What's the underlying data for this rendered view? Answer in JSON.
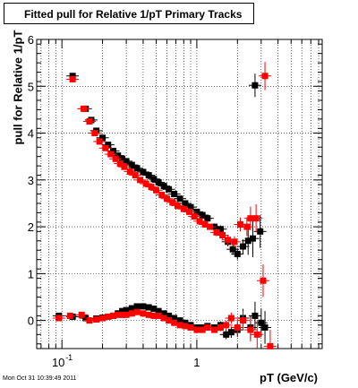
{
  "chart_data": {
    "type": "scatter",
    "title": "Fitted pull for Relative 1/pT  Primary Tracks",
    "xlabel": "pT (GeV/c)",
    "ylabel": "pull for Relative 1/pT",
    "x_scale": "log",
    "xlim": [
      0.065,
      8.5
    ],
    "ylim": [
      -0.6,
      6
    ],
    "grid": true,
    "x_ticks": [
      {
        "value": 0.1,
        "label": "10",
        "exponent": "-1"
      },
      {
        "value": 1,
        "label": "1",
        "exponent": ""
      }
    ],
    "y_ticks": [
      {
        "value": 0,
        "label": "0"
      },
      {
        "value": 1,
        "label": "1"
      },
      {
        "value": 2,
        "label": "2"
      },
      {
        "value": 3,
        "label": "3"
      },
      {
        "value": 4,
        "label": "4"
      },
      {
        "value": 5,
        "label": "5"
      },
      {
        "value": 6,
        "label": "6"
      }
    ],
    "series": [
      {
        "color": "#000000",
        "kind": "sigma",
        "points": [
          [
            0.12,
            5.22,
            0.06
          ],
          [
            0.15,
            4.52,
            0.04
          ],
          [
            0.165,
            4.28,
            0.03
          ],
          [
            0.18,
            4.05,
            0.03
          ],
          [
            0.2,
            3.9,
            0.03
          ],
          [
            0.22,
            3.75,
            0.03
          ],
          [
            0.24,
            3.62,
            0.03
          ],
          [
            0.26,
            3.52,
            0.03
          ],
          [
            0.28,
            3.45,
            0.03
          ],
          [
            0.3,
            3.4,
            0.03
          ],
          [
            0.33,
            3.32,
            0.03
          ],
          [
            0.36,
            3.25,
            0.03
          ],
          [
            0.4,
            3.17,
            0.03
          ],
          [
            0.44,
            3.1,
            0.03
          ],
          [
            0.48,
            3.02,
            0.03
          ],
          [
            0.52,
            2.95,
            0.03
          ],
          [
            0.57,
            2.87,
            0.03
          ],
          [
            0.62,
            2.8,
            0.03
          ],
          [
            0.68,
            2.7,
            0.03
          ],
          [
            0.75,
            2.6,
            0.03
          ],
          [
            0.82,
            2.5,
            0.03
          ],
          [
            0.9,
            2.42,
            0.04
          ],
          [
            1.0,
            2.32,
            0.04
          ],
          [
            1.1,
            2.25,
            0.05
          ],
          [
            1.2,
            2.18,
            0.05
          ],
          [
            1.35,
            2.0,
            0.07
          ],
          [
            1.5,
            1.95,
            0.08
          ],
          [
            1.7,
            1.68,
            0.1
          ],
          [
            1.85,
            1.52,
            0.12
          ],
          [
            2.0,
            1.42,
            0.12
          ],
          [
            2.2,
            1.58,
            0.15
          ],
          [
            2.4,
            1.7,
            0.3
          ],
          [
            2.6,
            1.75,
            0.4
          ],
          [
            2.7,
            5.02,
            0.25
          ],
          [
            2.95,
            1.9,
            0.35
          ]
        ]
      },
      {
        "color": "#ff0000",
        "kind": "sigma",
        "points": [
          [
            0.12,
            5.15,
            0.06
          ],
          [
            0.145,
            4.52,
            0.04
          ],
          [
            0.16,
            4.25,
            0.03
          ],
          [
            0.175,
            4.0,
            0.03
          ],
          [
            0.19,
            3.82,
            0.03
          ],
          [
            0.21,
            3.68,
            0.03
          ],
          [
            0.23,
            3.55,
            0.03
          ],
          [
            0.25,
            3.45,
            0.03
          ],
          [
            0.27,
            3.35,
            0.03
          ],
          [
            0.29,
            3.28,
            0.03
          ],
          [
            0.32,
            3.18,
            0.03
          ],
          [
            0.35,
            3.1,
            0.03
          ],
          [
            0.38,
            3.0,
            0.03
          ],
          [
            0.42,
            2.92,
            0.03
          ],
          [
            0.46,
            2.85,
            0.03
          ],
          [
            0.5,
            2.78,
            0.03
          ],
          [
            0.55,
            2.68,
            0.03
          ],
          [
            0.6,
            2.6,
            0.03
          ],
          [
            0.66,
            2.52,
            0.03
          ],
          [
            0.72,
            2.45,
            0.03
          ],
          [
            0.8,
            2.38,
            0.03
          ],
          [
            0.88,
            2.32,
            0.04
          ],
          [
            0.96,
            2.22,
            0.04
          ],
          [
            1.05,
            2.12,
            0.05
          ],
          [
            1.15,
            2.05,
            0.05
          ],
          [
            1.25,
            2.0,
            0.06
          ],
          [
            1.4,
            1.88,
            0.08
          ],
          [
            1.55,
            1.82,
            0.09
          ],
          [
            1.7,
            1.72,
            0.1
          ],
          [
            1.9,
            1.68,
            0.12
          ],
          [
            2.1,
            2.05,
            0.15
          ],
          [
            2.35,
            2.0,
            0.2
          ],
          [
            2.5,
            2.18,
            0.25
          ],
          [
            2.75,
            2.18,
            0.3
          ],
          [
            3.2,
            5.22,
            0.3
          ]
        ]
      },
      {
        "color": "#000000",
        "kind": "mean",
        "points": [
          [
            0.095,
            0.1,
            0.05
          ],
          [
            0.12,
            0.08,
            0.04
          ],
          [
            0.15,
            0.05,
            0.04
          ],
          [
            0.18,
            0.04,
            0.03
          ],
          [
            0.2,
            0.06,
            0.03
          ],
          [
            0.22,
            0.08,
            0.03
          ],
          [
            0.24,
            0.1,
            0.03
          ],
          [
            0.26,
            0.15,
            0.03
          ],
          [
            0.28,
            0.2,
            0.03
          ],
          [
            0.3,
            0.22,
            0.03
          ],
          [
            0.33,
            0.26,
            0.03
          ],
          [
            0.36,
            0.3,
            0.03
          ],
          [
            0.4,
            0.3,
            0.03
          ],
          [
            0.44,
            0.28,
            0.03
          ],
          [
            0.48,
            0.25,
            0.03
          ],
          [
            0.52,
            0.2,
            0.03
          ],
          [
            0.57,
            0.15,
            0.03
          ],
          [
            0.62,
            0.1,
            0.03
          ],
          [
            0.68,
            0.05,
            0.03
          ],
          [
            0.75,
            0.0,
            0.03
          ],
          [
            0.82,
            -0.05,
            0.03
          ],
          [
            0.9,
            -0.1,
            0.04
          ],
          [
            1.0,
            -0.15,
            0.04
          ],
          [
            1.1,
            -0.15,
            0.05
          ],
          [
            1.2,
            -0.12,
            0.05
          ],
          [
            1.35,
            -0.15,
            0.06
          ],
          [
            1.5,
            -0.1,
            0.08
          ],
          [
            1.65,
            -0.3,
            0.1
          ],
          [
            1.8,
            -0.25,
            0.12
          ],
          [
            2.0,
            -0.2,
            0.15
          ],
          [
            2.2,
            0.05,
            0.2
          ],
          [
            2.5,
            -0.15,
            0.25
          ],
          [
            2.7,
            0.1,
            0.3
          ],
          [
            3.0,
            -0.05,
            0.3
          ],
          [
            3.2,
            -0.15,
            0.35
          ]
        ]
      },
      {
        "color": "#ff0000",
        "kind": "mean",
        "points": [
          [
            0.095,
            0.05,
            0.05
          ],
          [
            0.115,
            0.1,
            0.04
          ],
          [
            0.14,
            0.12,
            0.04
          ],
          [
            0.16,
            0.0,
            0.03
          ],
          [
            0.18,
            0.02,
            0.03
          ],
          [
            0.2,
            0.05,
            0.03
          ],
          [
            0.22,
            0.08,
            0.03
          ],
          [
            0.24,
            0.1,
            0.03
          ],
          [
            0.26,
            0.12,
            0.03
          ],
          [
            0.28,
            0.12,
            0.03
          ],
          [
            0.3,
            0.12,
            0.03
          ],
          [
            0.33,
            0.15,
            0.03
          ],
          [
            0.36,
            0.18,
            0.03
          ],
          [
            0.4,
            0.15,
            0.03
          ],
          [
            0.44,
            0.12,
            0.03
          ],
          [
            0.48,
            0.1,
            0.03
          ],
          [
            0.52,
            0.1,
            0.03
          ],
          [
            0.57,
            0.05,
            0.03
          ],
          [
            0.62,
            0.0,
            0.03
          ],
          [
            0.68,
            -0.05,
            0.03
          ],
          [
            0.75,
            -0.1,
            0.03
          ],
          [
            0.82,
            -0.12,
            0.03
          ],
          [
            0.9,
            -0.15,
            0.04
          ],
          [
            1.0,
            -0.2,
            0.04
          ],
          [
            1.1,
            -0.2,
            0.05
          ],
          [
            1.2,
            -0.15,
            0.05
          ],
          [
            1.35,
            -0.2,
            0.06
          ],
          [
            1.5,
            -0.15,
            0.08
          ],
          [
            1.65,
            -0.1,
            0.1
          ],
          [
            1.8,
            0.05,
            0.12
          ],
          [
            2.0,
            -0.15,
            0.15
          ],
          [
            2.2,
            0.0,
            0.2
          ],
          [
            2.5,
            -0.2,
            0.25
          ],
          [
            2.8,
            -0.3,
            0.3
          ],
          [
            3.1,
            0.85,
            0.35
          ],
          [
            3.5,
            -0.55,
            0.35
          ]
        ]
      }
    ]
  },
  "timestamp": "Mon Oct 31 10:39:49 2011"
}
